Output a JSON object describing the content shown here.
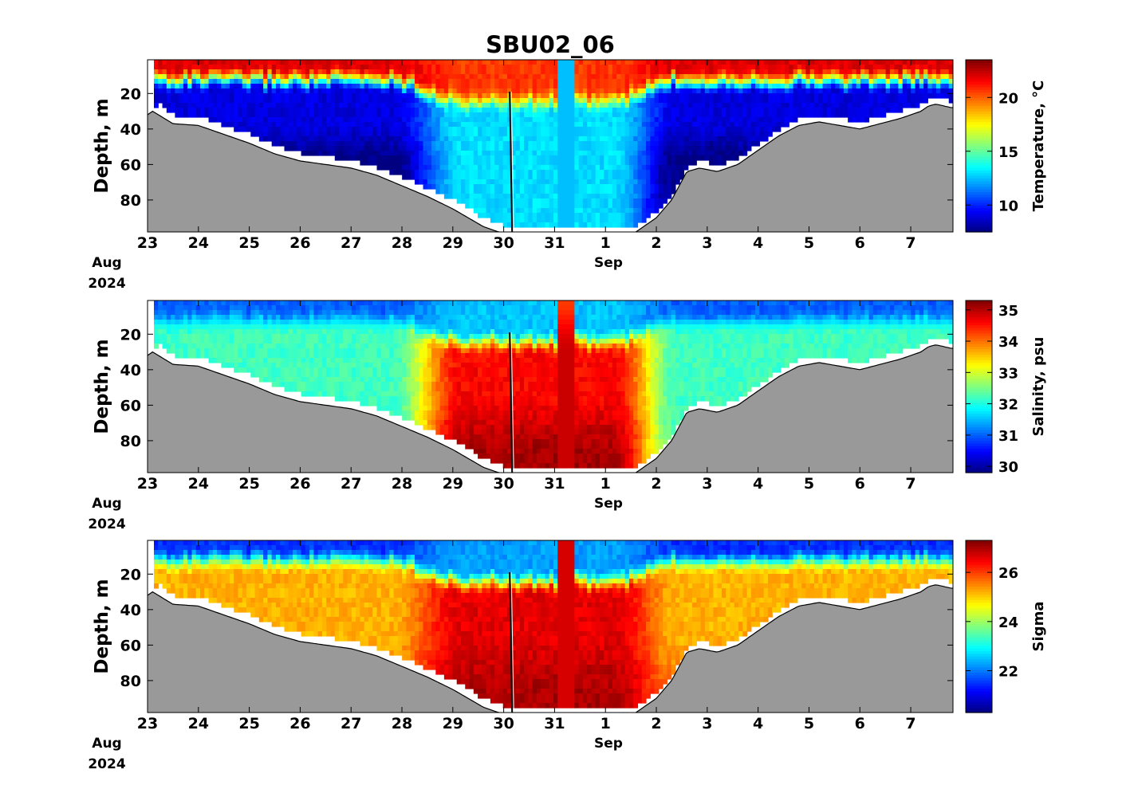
{
  "title": "SBU02_06",
  "chart_data": [
    {
      "type": "heatmap",
      "variable": "temperature",
      "ylabel": "Depth, m",
      "colorbar_label": "Temperature, °C",
      "colorbar_ticks": [
        10,
        15,
        20
      ],
      "colorbar_range": [
        7.5,
        23.5
      ],
      "colormap": "jet",
      "ylim": [
        98,
        1
      ],
      "yticks": [
        20,
        40,
        60,
        80
      ],
      "x_ticks": [
        "23",
        "24",
        "25",
        "26",
        "27",
        "28",
        "29",
        "30",
        "31",
        "1",
        "2",
        "3",
        "4",
        "5",
        "6",
        "7"
      ],
      "x_date_labels": [
        "Aug",
        "2024",
        "Sep"
      ],
      "x_range_days": [
        "2024-08-23",
        "2024-09-07 20:00"
      ],
      "surface_value": 22,
      "bottom_value_stratified": 9,
      "bottom_value_mixed": 13,
      "mixed_window": [
        "2024-08-28 12:00",
        "2024-09-01 12:00"
      ]
    },
    {
      "type": "heatmap",
      "variable": "salinity",
      "ylabel": "Depth, m",
      "colorbar_label": "Salinity, psu",
      "colorbar_ticks": [
        30,
        31,
        32,
        33,
        34,
        35
      ],
      "colorbar_range": [
        29.8,
        35.3
      ],
      "colormap": "jet",
      "ylim": [
        98,
        1
      ],
      "yticks": [
        20,
        40,
        60,
        80
      ],
      "x_ticks": [
        "23",
        "24",
        "25",
        "26",
        "27",
        "28",
        "29",
        "30",
        "31",
        "1",
        "2",
        "3",
        "4",
        "5",
        "6",
        "7"
      ],
      "x_date_labels": [
        "Aug",
        "2024",
        "Sep"
      ],
      "x_range_days": [
        "2024-08-23",
        "2024-09-07 20:00"
      ],
      "surface_value": 31.0,
      "bottom_value_stratified": 32.2,
      "bottom_value_mixed": 34.6,
      "mixed_window": [
        "2024-08-28 12:00",
        "2024-09-01 12:00"
      ]
    },
    {
      "type": "heatmap",
      "variable": "sigma",
      "ylabel": "Depth, m",
      "colorbar_label": "Sigma",
      "colorbar_ticks": [
        22,
        24,
        26
      ],
      "colorbar_range": [
        20.3,
        27.3
      ],
      "colormap": "jet",
      "ylim": [
        98,
        1
      ],
      "yticks": [
        20,
        40,
        60,
        80
      ],
      "x_ticks": [
        "23",
        "24",
        "25",
        "26",
        "27",
        "28",
        "29",
        "30",
        "31",
        "1",
        "2",
        "3",
        "4",
        "5",
        "6",
        "7"
      ],
      "x_date_labels": [
        "Aug",
        "2024",
        "Sep"
      ],
      "x_range_days": [
        "2024-08-23",
        "2024-09-07 20:00"
      ],
      "surface_value": 21.5,
      "bottom_value_stratified": 25.2,
      "bottom_value_mixed": 26.6,
      "mixed_window": [
        "2024-08-28 12:00",
        "2024-09-01 12:00"
      ]
    }
  ],
  "bathymetry": {
    "description_days": [
      0,
      0.1,
      0.5,
      1.0,
      1.5,
      2.0,
      2.5,
      3.0,
      3.5,
      4.0,
      4.5,
      5.0,
      5.5,
      6.0,
      6.3,
      6.6,
      6.9,
      7.2,
      7.6,
      8.0,
      8.4,
      8.8,
      9.0,
      9.2,
      9.6,
      10.0,
      10.3,
      10.6,
      10.85,
      11.2,
      11.6,
      12.0,
      12.4,
      12.8,
      13.2,
      13.6,
      14.0,
      14.4,
      14.8,
      15.2,
      15.35,
      15.5,
      15.8
    ],
    "depth_m": [
      32,
      30,
      37,
      38,
      43,
      48,
      54,
      58,
      60,
      62,
      66,
      72,
      78,
      85,
      90,
      95,
      98,
      99,
      99,
      99,
      99,
      99,
      99,
      99,
      98,
      90,
      80,
      64,
      62,
      64,
      60,
      52,
      44,
      38,
      36,
      38,
      40,
      37,
      34,
      30,
      27,
      26,
      28
    ]
  },
  "mooring_line_day": 7.15
}
